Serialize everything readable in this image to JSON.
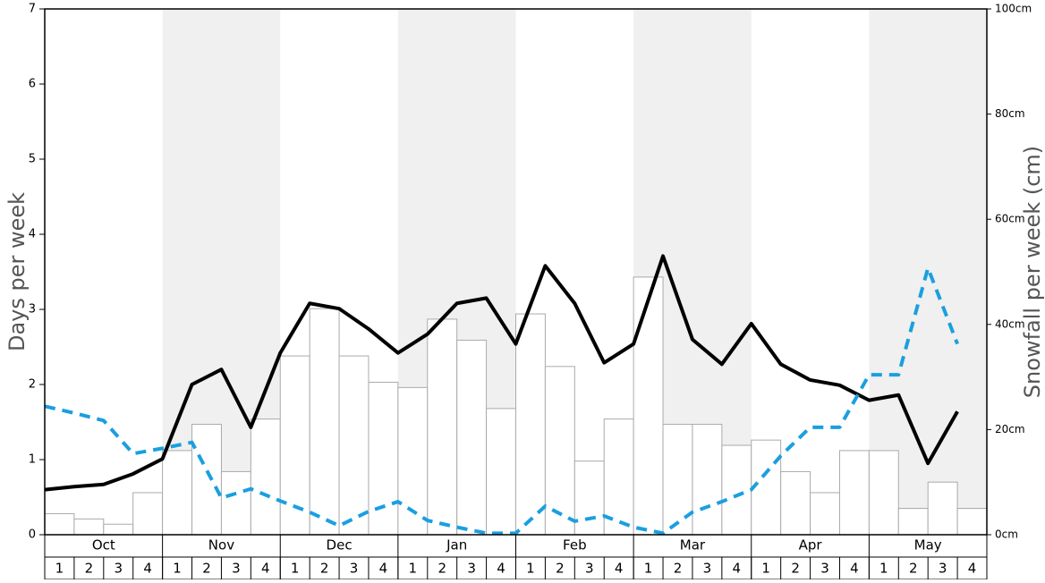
{
  "chart_data": {
    "type": "bar-line",
    "groups": [
      "Oct",
      "Nov",
      "Dec",
      "Jan",
      "Feb",
      "Mar",
      "Apr",
      "May"
    ],
    "categories": [
      "1",
      "2",
      "3",
      "4",
      "1",
      "2",
      "3",
      "4",
      "1",
      "2",
      "3",
      "4",
      "1",
      "2",
      "3",
      "4",
      "1",
      "2",
      "3",
      "4",
      "1",
      "2",
      "3",
      "4",
      "1",
      "2",
      "3",
      "4",
      "1",
      "2",
      "3",
      "4"
    ],
    "ylabel": "Days per week",
    "y2label": "Snowfall per week (cm)",
    "ylim": [
      0,
      7
    ],
    "yticks": [
      0,
      1,
      2,
      3,
      4,
      5,
      6,
      7
    ],
    "y2lim": [
      0,
      100
    ],
    "y2ticks": [
      {
        "value": 0,
        "label": "0cm"
      },
      {
        "value": 20,
        "label": "20cm"
      },
      {
        "value": 40,
        "label": "40cm"
      },
      {
        "value": 60,
        "label": "60cm"
      },
      {
        "value": 80,
        "label": "80cm"
      },
      {
        "value": 100,
        "label": "100cm"
      }
    ],
    "shade_color": "#f0f0f0",
    "series": [
      {
        "type": "bar",
        "axis": "y2",
        "color": "#ffffff",
        "edge_color": "#aaaaaa",
        "values": [
          4,
          3,
          2,
          8,
          16,
          21,
          12,
          22,
          34,
          43,
          34,
          29,
          28,
          41,
          37,
          24,
          42,
          32,
          14,
          22,
          49,
          21,
          21,
          17,
          18,
          12,
          8,
          16,
          16,
          5,
          10,
          5
        ]
      },
      {
        "type": "line",
        "color": "#000000",
        "dashed": false,
        "values": [
          0.6,
          0.64,
          0.67,
          0.81,
          1.01,
          2.0,
          2.2,
          1.43,
          2.42,
          3.08,
          3.01,
          2.74,
          2.42,
          2.67,
          3.08,
          3.15,
          2.54,
          3.58,
          3.08,
          2.29,
          2.54,
          3.71,
          2.6,
          2.27,
          2.81,
          2.27,
          2.06,
          1.99,
          1.79,
          1.86,
          0.95,
          1.64
        ]
      },
      {
        "type": "line",
        "color": "#1a9fe0",
        "dashed": true,
        "values": [
          1.71,
          1.62,
          1.52,
          1.08,
          1.15,
          1.23,
          0.49,
          0.61,
          0.45,
          0.3,
          0.12,
          0.31,
          0.44,
          0.19,
          0.1,
          0.02,
          0.02,
          0.38,
          0.18,
          0.25,
          0.1,
          0.02,
          0.3,
          0.44,
          0.6,
          1.05,
          1.43,
          1.43,
          2.13,
          2.13,
          3.55,
          2.54
        ]
      }
    ]
  }
}
